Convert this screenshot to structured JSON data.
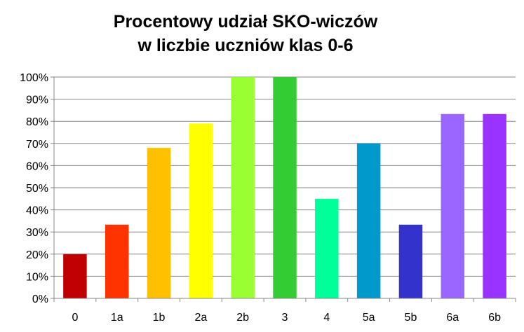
{
  "chart_data": {
    "type": "bar",
    "title_lines": [
      "Procentowy udział SKO-wiczów",
      "w liczbie uczniów klas 0-6"
    ],
    "categories": [
      "0",
      "1a",
      "1b",
      "2a",
      "2b",
      "3",
      "4",
      "5a",
      "5b",
      "6a",
      "6b"
    ],
    "values": [
      20,
      33.3,
      68,
      79,
      100,
      100,
      45,
      70,
      33.3,
      83.3,
      83.3
    ],
    "colors": [
      "#C00000",
      "#FF3300",
      "#FFC000",
      "#FFFF00",
      "#99FF33",
      "#33CC33",
      "#00FF99",
      "#0099CC",
      "#3333CC",
      "#9966FF",
      "#9933FF"
    ],
    "ylim": [
      0,
      100
    ],
    "yticks": [
      0,
      10,
      20,
      30,
      40,
      50,
      60,
      70,
      80,
      90,
      100
    ],
    "ytick_labels": [
      "0%",
      "10%",
      "20%",
      "30%",
      "40%",
      "50%",
      "60%",
      "70%",
      "80%",
      "90%",
      "100%"
    ],
    "grid": true,
    "legend": "none"
  }
}
